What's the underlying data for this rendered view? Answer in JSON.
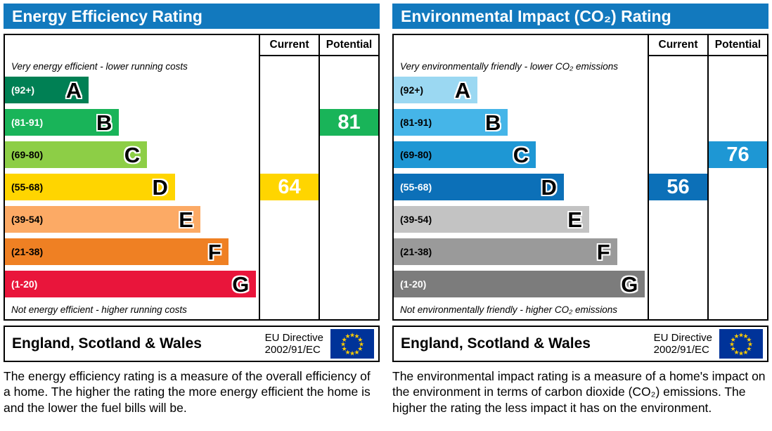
{
  "colors": {
    "header_bg": "#1279be",
    "eu_flag_bg": "#003399",
    "eu_flag_star": "#ffcc00"
  },
  "chart_data": [
    {
      "type": "bar",
      "title": "Energy Efficiency Rating",
      "categories": [
        "A",
        "B",
        "C",
        "D",
        "E",
        "F",
        "G"
      ],
      "band_ranges": [
        "92+",
        "81-91",
        "69-80",
        "55-68",
        "39-54",
        "21-38",
        "1-20"
      ],
      "series": [
        {
          "name": "Current",
          "value": 64,
          "band": "D"
        },
        {
          "name": "Potential",
          "value": 81,
          "band": "B"
        }
      ],
      "scale": [
        1,
        100
      ]
    },
    {
      "type": "bar",
      "title": "Environmental Impact (CO₂) Rating",
      "categories": [
        "A",
        "B",
        "C",
        "D",
        "E",
        "F",
        "G"
      ],
      "band_ranges": [
        "92+",
        "81-91",
        "69-80",
        "55-68",
        "39-54",
        "21-38",
        "1-20"
      ],
      "series": [
        {
          "name": "Current",
          "value": 56,
          "band": "D"
        },
        {
          "name": "Potential",
          "value": 76,
          "band": "C"
        }
      ],
      "scale": [
        1,
        100
      ]
    }
  ],
  "panels": [
    {
      "title": "Energy Efficiency Rating",
      "col_current": "Current",
      "col_potential": "Potential",
      "top_note": "Very energy efficient - lower running costs",
      "bottom_note": "Not energy efficient - higher running costs",
      "bands": [
        {
          "range": "(92+)",
          "letter": "A",
          "color": "#008054",
          "range_color": "#ffffff",
          "width": "33%"
        },
        {
          "range": "(81-91)",
          "letter": "B",
          "color": "#19b459",
          "range_color": "#ffffff",
          "width": "45%"
        },
        {
          "range": "(69-80)",
          "letter": "C",
          "color": "#8dce46",
          "range_color": "#000000",
          "width": "56%"
        },
        {
          "range": "(55-68)",
          "letter": "D",
          "color": "#ffd500",
          "range_color": "#000000",
          "width": "67%"
        },
        {
          "range": "(39-54)",
          "letter": "E",
          "color": "#fcaa65",
          "range_color": "#000000",
          "width": "77%"
        },
        {
          "range": "(21-38)",
          "letter": "F",
          "color": "#ef8023",
          "range_color": "#000000",
          "width": "88%"
        },
        {
          "range": "(1-20)",
          "letter": "G",
          "color": "#e9153b",
          "range_color": "#ffffff",
          "width": "99%"
        }
      ],
      "current": {
        "value": "64",
        "color": "#ffd500",
        "text_color": "#ffffff"
      },
      "potential": {
        "value": "81",
        "color": "#19b459",
        "text_color": "#ffffff"
      },
      "footer_region": "England, Scotland & Wales",
      "footer_directive_line1": "EU Directive",
      "footer_directive_line2": "2002/91/EC",
      "description": "The energy efficiency rating is a measure of the overall efficiency of a home. The higher the rating the more energy efficient the home is and the lower the fuel bills will be."
    },
    {
      "title": "Environmental Impact (CO₂) Rating",
      "col_current": "Current",
      "col_potential": "Potential",
      "top_note": "Very environmentally friendly - lower CO₂ emissions",
      "bottom_note": "Not environmentally friendly - higher CO₂ emissions",
      "bands": [
        {
          "range": "(92+)",
          "letter": "A",
          "color": "#9bd8f2",
          "range_color": "#000000",
          "width": "33%"
        },
        {
          "range": "(81-91)",
          "letter": "B",
          "color": "#45b5e8",
          "range_color": "#000000",
          "width": "45%"
        },
        {
          "range": "(69-80)",
          "letter": "C",
          "color": "#1e97d4",
          "range_color": "#000000",
          "width": "56%"
        },
        {
          "range": "(55-68)",
          "letter": "D",
          "color": "#0c70b8",
          "range_color": "#ffffff",
          "width": "67%"
        },
        {
          "range": "(39-54)",
          "letter": "E",
          "color": "#c3c3c3",
          "range_color": "#000000",
          "width": "77%"
        },
        {
          "range": "(21-38)",
          "letter": "F",
          "color": "#9a9a9a",
          "range_color": "#000000",
          "width": "88%"
        },
        {
          "range": "(1-20)",
          "letter": "G",
          "color": "#7c7c7c",
          "range_color": "#ffffff",
          "width": "99%"
        }
      ],
      "current": {
        "value": "56",
        "color": "#0c70b8",
        "text_color": "#ffffff"
      },
      "potential": {
        "value": "76",
        "color": "#1e97d4",
        "text_color": "#ffffff"
      },
      "footer_region": "England, Scotland & Wales",
      "footer_directive_line1": "EU Directive",
      "footer_directive_line2": "2002/91/EC",
      "description": "The environmental impact rating is a measure of a home's impact on the environment in terms of carbon dioxide (CO₂) emissions. The higher the rating the less impact it has on the environment."
    }
  ]
}
